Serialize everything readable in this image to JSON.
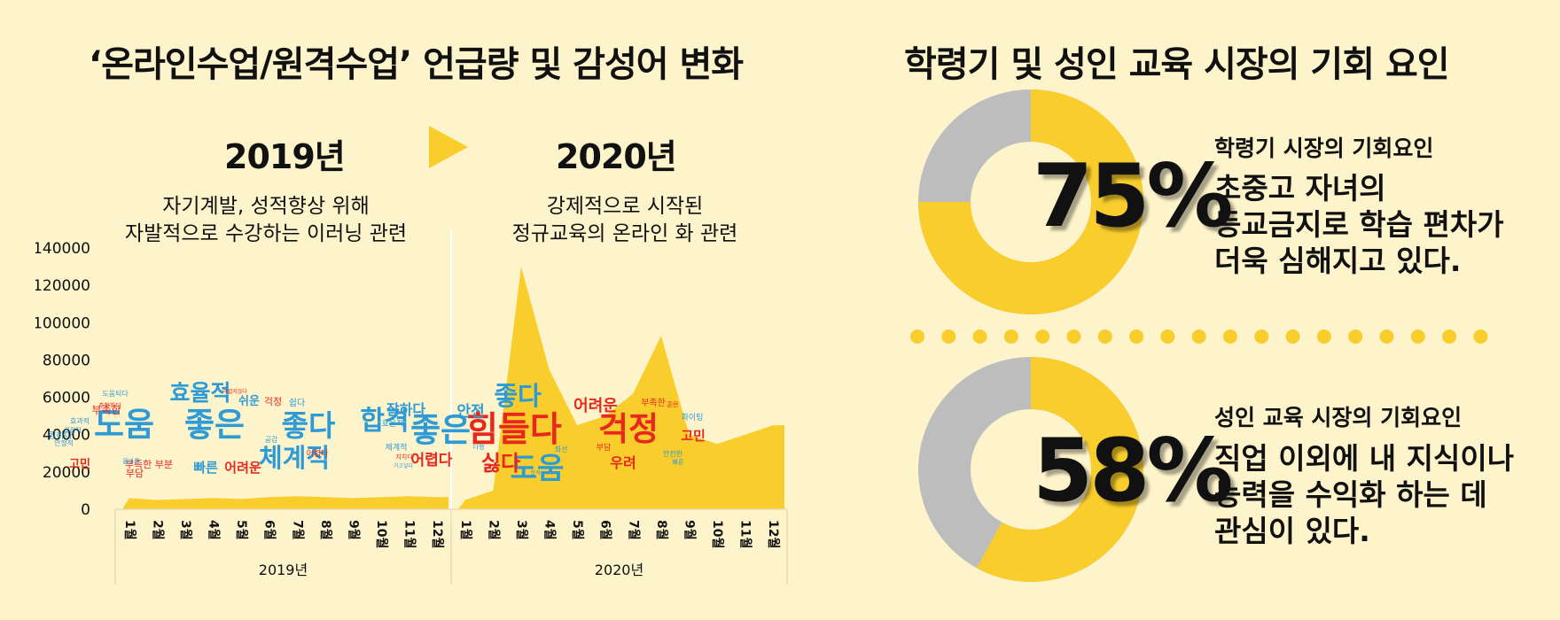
{
  "left": {
    "title": "‘온라인수업/원격수업’ 언급량 및 감성어 변화",
    "year_2019": "2019년",
    "year_2020": "2020년",
    "sub_2019_line1": "자기계발, 성적향상 위해",
    "sub_2019_line2": "자발적으로 수강하는 이러닝 관련",
    "sub_2020_line1": "강제적으로 시작된",
    "sub_2020_line2": "정규교육의 온라인 화 관련"
  },
  "right": {
    "title": "학령기 및 성인 교육 시장의 기회 요인",
    "card1": {
      "percent": "75%",
      "value": 75,
      "label": "학령기 시장의 기회요인",
      "desc_line1": "초중고 자녀의",
      "desc_line2": "등교금지로 학습 편차가",
      "desc_line3": "더욱 심해지고 있다."
    },
    "card2": {
      "percent": "58%",
      "value": 58,
      "label": "성인 교육 시장의 기회요인",
      "desc_line1": "직업 이외에 내 지식이나",
      "desc_line2": "능력을 수익화 하는 데",
      "desc_line3": "관심이 있다."
    }
  },
  "colors": {
    "background": "#FEF4CB",
    "accent_yellow": "#F8CD2C",
    "gray": "#BDBDBD",
    "word_blue": "#2E9BD6",
    "word_red": "#E8281E"
  },
  "chart_data": {
    "type": "area",
    "ylim": [
      0,
      140000
    ],
    "yticks": [
      "140000",
      "120000",
      "100000",
      "80000",
      "60000",
      "40000",
      "20000",
      "0"
    ],
    "groups": [
      "2019년",
      "2020년"
    ],
    "categories": [
      "1월",
      "2월",
      "3월",
      "4월",
      "5월",
      "6월",
      "7월",
      "8월",
      "9월",
      "10월",
      "11월",
      "12월"
    ],
    "series": [
      {
        "values": [
          6000,
          5000,
          5500,
          6000,
          5500,
          6500,
          7000,
          6500,
          6000,
          6500,
          7000,
          6500
        ]
      },
      {
        "values": [
          5000,
          10000,
          130000,
          75000,
          45000,
          50000,
          62000,
          93000,
          40000,
          35000,
          40000,
          45000
        ]
      }
    ],
    "wordclouds": [
      {
        "words": [
          {
            "t": "도움",
            "c": "blue",
            "s": 40
          },
          {
            "t": "좋은",
            "c": "blue",
            "s": 40
          },
          {
            "t": "좋다",
            "c": "blue",
            "s": 36
          },
          {
            "t": "합격",
            "c": "blue",
            "s": 33
          },
          {
            "t": "효율적",
            "c": "blue",
            "s": 27
          },
          {
            "t": "체계적",
            "c": "blue",
            "s": 32
          },
          {
            "t": "빠른",
            "c": "blue",
            "s": 16
          },
          {
            "t": "어려운",
            "c": "red",
            "s": 16
          },
          {
            "t": "쉬운",
            "c": "blue",
            "s": 14
          },
          {
            "t": "걱정",
            "c": "red",
            "s": 12
          },
          {
            "t": "쉽다",
            "c": "blue",
            "s": 11
          },
          {
            "t": "부족한",
            "c": "red",
            "s": 13
          },
          {
            "t": "도움되다",
            "c": "blue",
            "s": 9
          },
          {
            "t": "효과적",
            "c": "blue",
            "s": 9
          },
          {
            "t": "원하다",
            "c": "blue",
            "s": 11
          },
          {
            "t": "고민",
            "c": "red",
            "s": 14
          },
          {
            "t": "부족한 부분",
            "c": "red",
            "s": 12
          },
          {
            "t": "부담",
            "c": "red",
            "s": 12
          },
          {
            "t": "추천하다",
            "c": "red",
            "s": 8
          },
          {
            "t": "올바른",
            "c": "blue",
            "s": 8
          },
          {
            "t": "공감",
            "c": "blue",
            "s": 9
          },
          {
            "t": "어렵다",
            "c": "red",
            "s": 10
          },
          {
            "t": "어렵지않다",
            "c": "red",
            "s": 7
          },
          {
            "t": "안정적",
            "c": "blue",
            "s": 9
          },
          {
            "t": "긍정적",
            "c": "blue",
            "s": 8
          }
        ]
      },
      {
        "words": [
          {
            "t": "좋은",
            "c": "blue",
            "s": 40
          },
          {
            "t": "힘들다",
            "c": "red",
            "s": 42
          },
          {
            "t": "걱정",
            "c": "red",
            "s": 40
          },
          {
            "t": "좋다",
            "c": "blue",
            "s": 32
          },
          {
            "t": "도움",
            "c": "blue",
            "s": 36
          },
          {
            "t": "싫다",
            "c": "red",
            "s": 26
          },
          {
            "t": "어렵다",
            "c": "red",
            "s": 18
          },
          {
            "t": "어려운",
            "c": "red",
            "s": 20
          },
          {
            "t": "잘하다",
            "c": "blue",
            "s": 17
          },
          {
            "t": "안전",
            "c": "blue",
            "s": 19
          },
          {
            "t": "우려",
            "c": "red",
            "s": 17
          },
          {
            "t": "고민",
            "c": "red",
            "s": 16
          },
          {
            "t": "부족한",
            "c": "red",
            "s": 11
          },
          {
            "t": "화이팅",
            "c": "blue",
            "s": 10
          },
          {
            "t": "효율적",
            "c": "blue",
            "s": 10
          },
          {
            "t": "체계적",
            "c": "blue",
            "s": 10
          },
          {
            "t": "지치다",
            "c": "red",
            "s": 8
          },
          {
            "t": "가고싶다",
            "c": "blue",
            "s": 7
          },
          {
            "t": "다행",
            "c": "blue",
            "s": 8
          },
          {
            "t": "최선",
            "c": "blue",
            "s": 9
          },
          {
            "t": "부담",
            "c": "red",
            "s": 10
          },
          {
            "t": "안전한",
            "c": "blue",
            "s": 9
          },
          {
            "t": "빠른",
            "c": "blue",
            "s": 8
          },
          {
            "t": "합격",
            "c": "blue",
            "s": 7
          },
          {
            "t": "혼란",
            "c": "red",
            "s": 8
          }
        ]
      }
    ]
  }
}
